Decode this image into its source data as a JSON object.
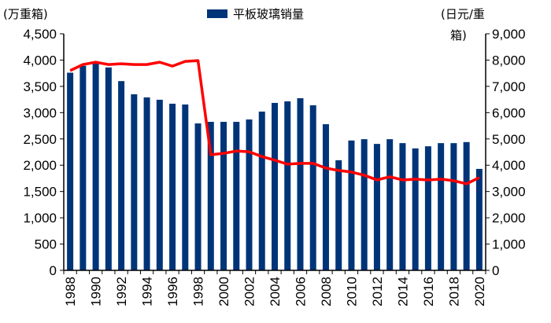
{
  "chart_data": {
    "type": "bar+line",
    "left_axis_title": "(万重箱)",
    "right_axis_title_line1": "(日元/重",
    "right_axis_title_line2": "箱)",
    "legend": [
      {
        "label": "平板玻璃销量",
        "color": "#003478"
      }
    ],
    "legend_placement": "top-center",
    "ylim_left": [
      0,
      4500
    ],
    "ylim_right": [
      0,
      9000
    ],
    "left_ticks": [
      "0",
      "500",
      "1,000",
      "1,500",
      "2,000",
      "2,500",
      "3,000",
      "3,500",
      "4,000",
      "4,500"
    ],
    "right_ticks": [
      "0",
      "1,000",
      "2,000",
      "3,000",
      "4,000",
      "5,000",
      "6,000",
      "7,000",
      "8,000",
      "9,000"
    ],
    "categories": [
      1988,
      1989,
      1990,
      1991,
      1992,
      1993,
      1994,
      1995,
      1996,
      1997,
      1998,
      1999,
      2000,
      2001,
      2002,
      2003,
      2004,
      2005,
      2006,
      2007,
      2008,
      2009,
      2010,
      2011,
      2012,
      2013,
      2014,
      2015,
      2016,
      2017,
      2018,
      2019,
      2020
    ],
    "x_tick_labels": [
      "1988",
      "1990",
      "1992",
      "1994",
      "1996",
      "1998",
      "2000",
      "2002",
      "2004",
      "2006",
      "2008",
      "2010",
      "2012",
      "2014",
      "2016",
      "2018",
      "2020"
    ],
    "series": [
      {
        "name": "平板玻璃销量",
        "type": "bar",
        "axis": "left",
        "color": "#003478",
        "values": [
          3760,
          3890,
          3950,
          3860,
          3600,
          3350,
          3290,
          3245,
          3170,
          3155,
          2795,
          2825,
          2825,
          2825,
          2870,
          3020,
          3185,
          3215,
          3275,
          3140,
          2780,
          2095,
          2470,
          2495,
          2405,
          2495,
          2420,
          2320,
          2360,
          2420,
          2420,
          2440,
          1930
        ]
      },
      {
        "type": "line",
        "axis": "right",
        "color": "#ff0000",
        "values": [
          7600,
          7830,
          7920,
          7830,
          7860,
          7830,
          7830,
          7920,
          7770,
          7950,
          7980,
          4400,
          4450,
          4540,
          4510,
          4330,
          4190,
          4040,
          4070,
          4070,
          3890,
          3800,
          3740,
          3620,
          3440,
          3560,
          3440,
          3470,
          3440,
          3470,
          3410,
          3290,
          3530
        ]
      }
    ],
    "grid": false
  }
}
